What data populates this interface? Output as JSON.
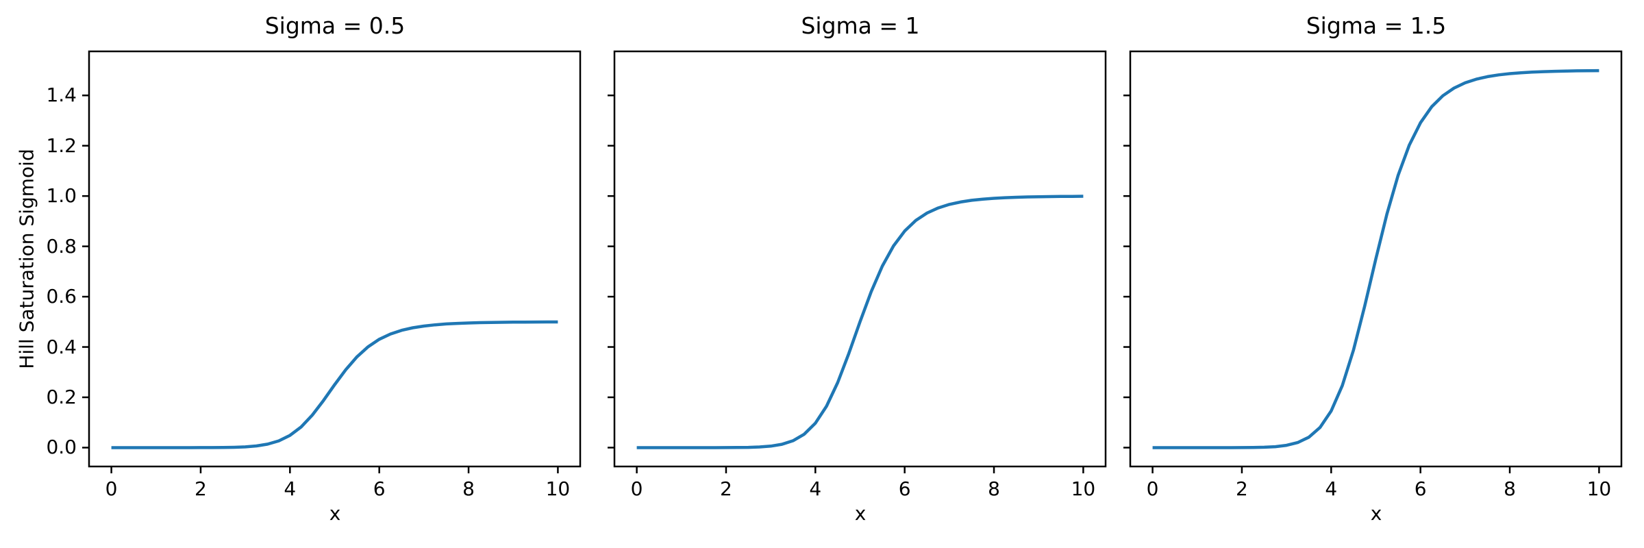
{
  "figure": {
    "background": "#ffffff",
    "text_color": "#000000",
    "spine_color": "#000000"
  },
  "chart_data": {
    "type": "line",
    "xlabel": "x",
    "ylabel": "Hill Saturation Sigmoid",
    "xlim": [
      -0.5,
      10.5
    ],
    "ylim": [
      -0.075,
      1.575
    ],
    "xticks": [
      0,
      2,
      4,
      6,
      8,
      10
    ],
    "xtick_labels": [
      "0",
      "2",
      "4",
      "6",
      "8",
      "10"
    ],
    "yticks": [
      0.0,
      0.2,
      0.4,
      0.6,
      0.8,
      1.0,
      1.2,
      1.4
    ],
    "ytick_labels": [
      "0.0",
      "0.2",
      "0.4",
      "0.6",
      "0.8",
      "1.0",
      "1.2",
      "1.4"
    ],
    "grid": false,
    "legend": false,
    "line_color": "#1f77b4",
    "x": [
      0,
      0.25,
      0.5,
      0.75,
      1,
      1.25,
      1.5,
      1.75,
      2,
      2.25,
      2.5,
      2.75,
      3,
      3.25,
      3.5,
      3.75,
      4,
      4.25,
      4.5,
      4.75,
      5,
      5.25,
      5.5,
      5.75,
      6,
      6.25,
      6.5,
      6.75,
      7,
      7.25,
      7.5,
      7.75,
      8,
      8.25,
      8.5,
      8.75,
      9,
      9.25,
      9.5,
      9.75,
      10
    ],
    "series": [
      {
        "subplot_title": "Sigma = 0.5",
        "sigma": 0.5,
        "values": [
          0,
          0,
          0,
          0,
          0,
          0,
          0,
          0,
          0.0001,
          0.0002,
          0.0005,
          0.0013,
          0.003,
          0.0066,
          0.0137,
          0.0267,
          0.0485,
          0.0822,
          0.1293,
          0.1873,
          0.25,
          0.3098,
          0.3609,
          0.4009,
          0.4305,
          0.4515,
          0.4662,
          0.4764,
          0.4833,
          0.4881,
          0.4915,
          0.4938,
          0.4955,
          0.4967,
          0.4975,
          0.4982,
          0.4986,
          0.4989,
          0.4992,
          0.4994,
          0.4995
        ]
      },
      {
        "subplot_title": "Sigma = 1",
        "sigma": 1,
        "values": [
          0,
          0,
          0,
          0,
          0,
          0,
          0,
          0,
          0.0001,
          0.0003,
          0.001,
          0.0025,
          0.006,
          0.0133,
          0.0275,
          0.0533,
          0.097,
          0.1645,
          0.2585,
          0.3745,
          0.5,
          0.6196,
          0.7217,
          0.8018,
          0.8609,
          0.903,
          0.9324,
          0.9527,
          0.9666,
          0.9762,
          0.983,
          0.9877,
          0.991,
          0.9934,
          0.9951,
          0.9963,
          0.9972,
          0.9979,
          0.9984,
          0.9987,
          0.999
        ]
      },
      {
        "subplot_title": "Sigma = 1.5",
        "sigma": 1.5,
        "values": [
          0,
          0,
          0,
          0,
          0,
          0,
          0,
          0,
          0.0002,
          0.0005,
          0.0015,
          0.0038,
          0.009,
          0.0199,
          0.0412,
          0.08,
          0.1455,
          0.2467,
          0.3878,
          0.5618,
          0.75,
          0.9294,
          1.0826,
          1.2027,
          1.2914,
          1.3546,
          1.3986,
          1.4291,
          1.4499,
          1.4644,
          1.4744,
          1.4815,
          1.4865,
          1.49,
          1.4926,
          1.4945,
          1.4958,
          1.4968,
          1.4976,
          1.4981,
          1.4985
        ]
      }
    ]
  }
}
